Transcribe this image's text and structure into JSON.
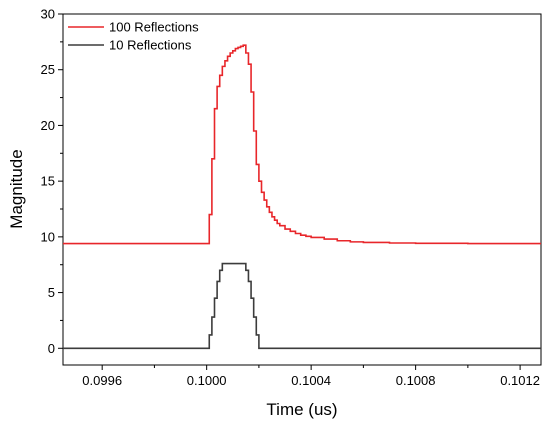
{
  "chart_data": {
    "type": "line",
    "title": "",
    "xlabel": "Time (us)",
    "ylabel": "Magnitude",
    "xlim": [
      0.09945,
      0.10128
    ],
    "ylim": [
      -1.5,
      30
    ],
    "x_ticks": [
      0.0996,
      0.1,
      0.1004,
      0.1008,
      0.1012
    ],
    "x_tick_labels": [
      "0.0996",
      "0.1000",
      "0.1004",
      "0.1008",
      "0.1012"
    ],
    "y_ticks": [
      0,
      5,
      10,
      15,
      20,
      25,
      30
    ],
    "y_tick_labels": [
      "0",
      "5",
      "10",
      "15",
      "20",
      "25",
      "30"
    ],
    "grid": false,
    "legend_position": "top-left",
    "series": [
      {
        "name": "100 Reflections",
        "color": "#e8262a",
        "x": [
          0.09945,
          0.1,
          0.10001,
          0.10002,
          0.10003,
          0.10004,
          0.10005,
          0.10006,
          0.10007,
          0.10008,
          0.10009,
          0.1001,
          0.10011,
          0.10012,
          0.10013,
          0.10014,
          0.10015,
          0.10016,
          0.10017,
          0.10018,
          0.10019,
          0.1002,
          0.10021,
          0.10022,
          0.10023,
          0.10024,
          0.10025,
          0.10026,
          0.10027,
          0.10028,
          0.1003,
          0.10032,
          0.10034,
          0.10036,
          0.10038,
          0.1004,
          0.10045,
          0.1005,
          0.10055,
          0.1006,
          0.1007,
          0.1008,
          0.101,
          0.10128
        ],
        "y": [
          9.4,
          9.4,
          12.0,
          17.0,
          21.5,
          23.5,
          24.5,
          25.3,
          25.8,
          26.2,
          26.5,
          26.7,
          26.9,
          27.0,
          27.1,
          27.2,
          26.5,
          25.5,
          23.0,
          19.5,
          16.5,
          15.0,
          14.0,
          13.3,
          12.7,
          12.2,
          11.8,
          11.5,
          11.2,
          11.0,
          10.7,
          10.5,
          10.3,
          10.15,
          10.05,
          9.95,
          9.8,
          9.65,
          9.55,
          9.5,
          9.45,
          9.42,
          9.4,
          9.4
        ]
      },
      {
        "name": "10 Reflections",
        "color": "#3c3c3c",
        "x": [
          0.09945,
          0.1,
          0.10001,
          0.10002,
          0.10003,
          0.10004,
          0.10005,
          0.10006,
          0.10007,
          0.10014,
          0.10015,
          0.10016,
          0.10017,
          0.10018,
          0.10019,
          0.1002,
          0.10128
        ],
        "y": [
          0,
          0,
          1.2,
          2.8,
          4.5,
          6.0,
          7.0,
          7.6,
          7.6,
          7.6,
          7.0,
          6.0,
          4.5,
          2.8,
          1.2,
          0,
          0
        ]
      }
    ]
  }
}
